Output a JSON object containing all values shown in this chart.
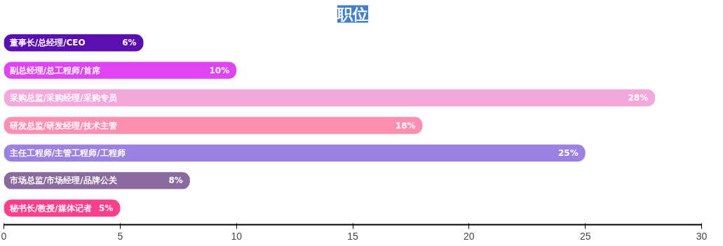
{
  "chart_data": {
    "type": "bar",
    "orientation": "horizontal",
    "title": "职位",
    "categories": [
      "董事长/总经理/CEO",
      "副总经理/总工程师/首席",
      "采购总监/采购经理/采购专员",
      "研发总监/研发经理/技术主管",
      "主任工程师/主管工程师/工程师",
      "市场总监/市场经理/品牌公关",
      "秘书长/教授/媒体记者"
    ],
    "values": [
      6,
      10,
      28,
      18,
      25,
      8,
      5
    ],
    "value_labels": [
      "6%",
      "10%",
      "28%",
      "18%",
      "25%",
      "8%",
      "5%"
    ],
    "colors": [
      "#5c0fb0",
      "#e044f2",
      "#f4a8dc",
      "#ff8fb2",
      "#9c80e2",
      "#8a6a9e",
      "#ff3f8c"
    ],
    "xlim": [
      0,
      30
    ],
    "xticks": [
      0,
      5,
      10,
      15,
      20,
      25,
      30
    ],
    "tick_labels": "x",
    "grid": false
  }
}
